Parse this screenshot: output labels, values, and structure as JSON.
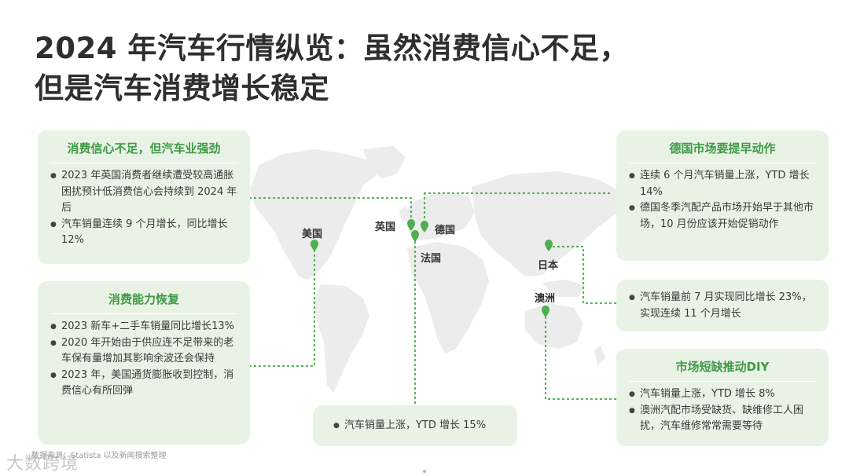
{
  "title": {
    "line1": "2024 年汽车行情纵览：虽然消费信心不足，",
    "line2": "但是汽车消费增长稳定"
  },
  "cards": {
    "uk": {
      "heading": "消费信心不足，但汽车业强劲",
      "items": [
        "2023 年英国消费者继续遭受较高通胀困扰预计低消费信心会持续到 2024 年后",
        "汽车销量连续 9 个月增长，同比增长 12%"
      ]
    },
    "us": {
      "heading": "消费能力恢复",
      "items": [
        "2023 新车+二手车销量同比增长13%",
        "2020 年开始由于供应连不足带来的老车保有量增加其影响余波还会保持",
        "2023 年，美国通货膨胀收到控制，消费信心有所回弹"
      ]
    },
    "france": {
      "items": [
        "汽车销量上涨，YTD 增长 15%"
      ]
    },
    "germany": {
      "heading": "德国市场要提早动作",
      "items": [
        "连续 6 个月汽车销量上涨，YTD 增长 14%",
        "德国冬季汽配产品市场开始早于其他市场，10 月份应该开始促销动作"
      ]
    },
    "japan": {
      "items": [
        "汽车销量前 7 月实现同比增长 23%，实现连续 11 个月增长"
      ]
    },
    "australia": {
      "heading": "市场短缺推动DIY",
      "items": [
        "汽车销量上涨，YTD 增长 8%",
        "澳洲汽配市场受缺货、缺维修工人困扰，汽车维修常常需要等待"
      ]
    }
  },
  "map_labels": {
    "us": "美国",
    "uk": "英国",
    "germany": "德国",
    "france": "法国",
    "japan": "日本",
    "australia": "澳洲"
  },
  "footer": {
    "source": "数据来源：Statista 以及新闻搜索整理",
    "logo": "大数跨境"
  },
  "colors": {
    "accent": "#4caf50",
    "card_bg": "#e9f3e5",
    "heading": "#3f9a47",
    "map": "#ececec"
  }
}
